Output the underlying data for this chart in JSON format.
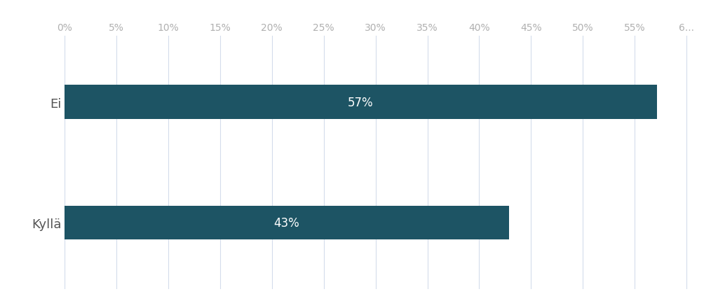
{
  "categories": [
    "Kyllä",
    "Ei"
  ],
  "values": [
    42.86,
    57.14
  ],
  "labels": [
    "43%",
    "57%"
  ],
  "bar_color": "#1d5464",
  "background_color": "#ffffff",
  "xlim": [
    0,
    62
  ],
  "xticks": [
    0,
    5,
    10,
    15,
    20,
    25,
    30,
    35,
    40,
    45,
    50,
    55,
    60
  ],
  "xtick_labels": [
    "0%",
    "5%",
    "10%",
    "15%",
    "20%",
    "25%",
    "30%",
    "35%",
    "40%",
    "45%",
    "50%",
    "55%",
    "6..."
  ],
  "bar_height": 0.28,
  "label_fontsize": 12,
  "tick_fontsize": 10,
  "tick_color": "#b0b0b0",
  "grid_color": "#d4dcec",
  "text_color": "#ffffff",
  "ytick_color": "#555555",
  "ytick_fontsize": 13
}
